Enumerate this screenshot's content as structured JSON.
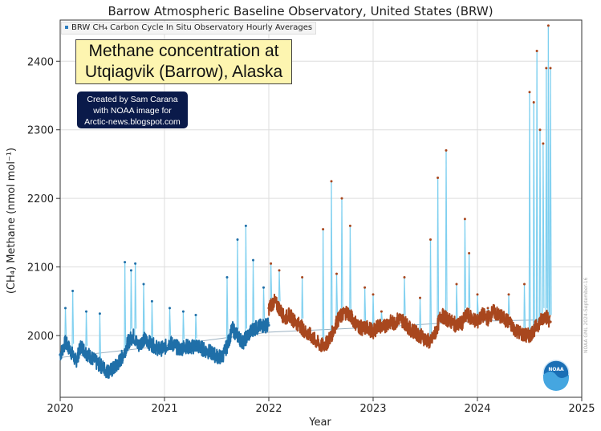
{
  "chart_data": {
    "type": "line",
    "title": "Barrow Atmospheric Baseline Observatory, United States (BRW)",
    "legend": "BRW CH₄ Carbon Cycle In Situ Observatory Hourly Averages",
    "legend_position": "top-left",
    "xlabel": "Year",
    "ylabel": "(CH₄) Methane (nmol mol⁻¹)",
    "xlim": [
      2020,
      2025
    ],
    "ylim": [
      1910,
      2460
    ],
    "xticks": [
      "2020",
      "2021",
      "2022",
      "2023",
      "2024",
      "2025"
    ],
    "yticks": [
      2000,
      2100,
      2200,
      2300,
      2400
    ],
    "grid": true,
    "series_colors": {
      "original": "#1f6fa8",
      "highlight": "#a8471e",
      "fill_line": "#7fd0f0"
    },
    "baseline": {
      "x": [
        2020.0,
        2021.0,
        2022.0,
        2023.0,
        2024.0,
        2024.7
      ],
      "y": [
        1968,
        1985,
        2005,
        2012,
        2021,
        2023
      ]
    },
    "series": [
      {
        "x": [
          2020.0,
          2020.05,
          2020.1,
          2020.15,
          2020.2,
          2020.25,
          2020.3,
          2020.35,
          2020.4,
          2020.45,
          2020.5,
          2020.55,
          2020.6,
          2020.65,
          2020.7,
          2020.75,
          2020.8,
          2020.85,
          2020.9,
          2020.95,
          2021.0,
          2021.05,
          2021.1,
          2021.15,
          2021.2,
          2021.25,
          2021.3,
          2021.35,
          2021.4,
          2021.45,
          2021.5,
          2021.55,
          2021.6,
          2021.65,
          2021.7,
          2021.75,
          2021.8,
          2021.85,
          2021.9,
          2021.95,
          2022.0
        ],
        "y": [
          1972,
          1990,
          1978,
          1962,
          1985,
          1975,
          1968,
          1960,
          1955,
          1948,
          1950,
          1958,
          1970,
          1990,
          2000,
          1985,
          1995,
          1990,
          1985,
          1980,
          1982,
          1990,
          1985,
          1980,
          1985,
          1982,
          1986,
          1982,
          1978,
          1975,
          1970,
          1968,
          1985,
          2010,
          2000,
          1990,
          2000,
          2010,
          2012,
          2015,
          2015
        ],
        "peaks": [
          [
            2020.05,
            2040
          ],
          [
            2020.12,
            2065
          ],
          [
            2020.25,
            2035
          ],
          [
            2020.38,
            2032
          ],
          [
            2020.62,
            2107
          ],
          [
            2020.68,
            2095
          ],
          [
            2020.72,
            2105
          ],
          [
            2020.8,
            2075
          ],
          [
            2020.88,
            2050
          ],
          [
            2021.05,
            2040
          ],
          [
            2021.18,
            2035
          ],
          [
            2021.3,
            2030
          ],
          [
            2021.6,
            2085
          ],
          [
            2021.7,
            2140
          ],
          [
            2021.78,
            2160
          ],
          [
            2021.85,
            2110
          ],
          [
            2021.95,
            2070
          ]
        ]
      },
      {
        "x": [
          2022.0,
          2022.05,
          2022.1,
          2022.15,
          2022.2,
          2022.25,
          2022.3,
          2022.35,
          2022.4,
          2022.45,
          2022.5,
          2022.55,
          2022.6,
          2022.65,
          2022.7,
          2022.75,
          2022.8,
          2022.85,
          2022.9,
          2022.95,
          2023.0,
          2023.05,
          2023.1,
          2023.15,
          2023.2,
          2023.25,
          2023.3,
          2023.35,
          2023.4,
          2023.45,
          2023.5,
          2023.55,
          2023.6,
          2023.65,
          2023.7,
          2023.75,
          2023.8,
          2023.85,
          2023.9,
          2023.95,
          2024.0,
          2024.05,
          2024.1,
          2024.15,
          2024.2,
          2024.25,
          2024.3,
          2024.35,
          2024.4,
          2024.45,
          2024.5,
          2024.55,
          2024.6,
          2024.65,
          2024.7
        ],
        "y": [
          2040,
          2050,
          2040,
          2025,
          2030,
          2020,
          2015,
          2005,
          2000,
          1992,
          1985,
          1988,
          2000,
          2020,
          2030,
          2035,
          2025,
          2015,
          2010,
          2012,
          2005,
          2015,
          2012,
          2020,
          2018,
          2025,
          2020,
          2010,
          2005,
          2000,
          1995,
          1990,
          2005,
          2030,
          2025,
          2020,
          2015,
          2018,
          2030,
          2025,
          2020,
          2030,
          2025,
          2035,
          2030,
          2025,
          2020,
          2010,
          2005,
          2000,
          2000,
          2010,
          2020,
          2030,
          2020
        ],
        "peaks": [
          [
            2022.02,
            2105
          ],
          [
            2022.1,
            2095
          ],
          [
            2022.32,
            2085
          ],
          [
            2022.52,
            2155
          ],
          [
            2022.6,
            2225
          ],
          [
            2022.65,
            2090
          ],
          [
            2022.7,
            2200
          ],
          [
            2022.78,
            2160
          ],
          [
            2022.92,
            2070
          ],
          [
            2023.0,
            2060
          ],
          [
            2023.08,
            2035
          ],
          [
            2023.3,
            2085
          ],
          [
            2023.45,
            2055
          ],
          [
            2023.55,
            2140
          ],
          [
            2023.62,
            2230
          ],
          [
            2023.7,
            2270
          ],
          [
            2023.8,
            2075
          ],
          [
            2023.88,
            2170
          ],
          [
            2023.92,
            2120
          ],
          [
            2024.0,
            2060
          ],
          [
            2024.1,
            2040
          ],
          [
            2024.3,
            2060
          ],
          [
            2024.45,
            2075
          ],
          [
            2024.5,
            2355
          ],
          [
            2024.54,
            2340
          ],
          [
            2024.57,
            2415
          ],
          [
            2024.6,
            2300
          ],
          [
            2024.63,
            2280
          ],
          [
            2024.66,
            2390
          ],
          [
            2024.68,
            2452
          ],
          [
            2024.7,
            2390
          ]
        ]
      }
    ]
  },
  "overlay": {
    "headline_line1": "Methane concentration at",
    "headline_line2": "Utqiagvik (Barrow), Alaska",
    "credit_line1": "Created by Sam Carana",
    "credit_line2": "with NOAA image for",
    "credit_line3": "Arctic-news.blogspot.com",
    "logo_text": "NOAA",
    "stamp": "NOAA GML 2024-September-16"
  }
}
